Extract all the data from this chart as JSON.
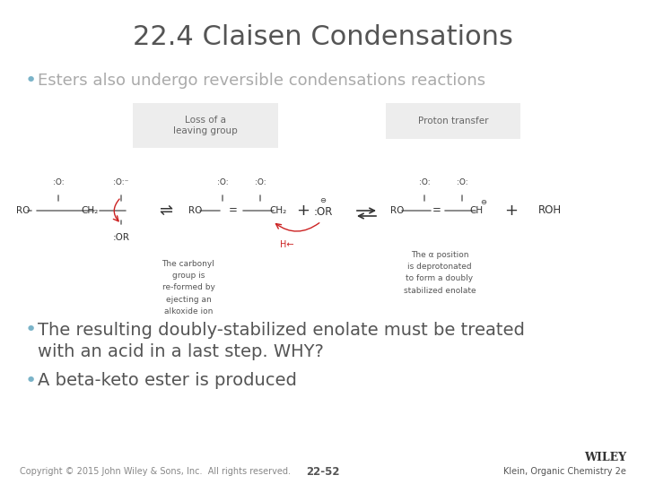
{
  "title": "22.4 Claisen Condensations",
  "title_color": "#555555",
  "title_fontsize": 22,
  "bullet_color": "#7ab3c8",
  "text_color": "#555555",
  "bullet1": "Esters also undergo reversible condensations reactions",
  "bullet2_line1": "The resulting doubly-stabilized enolate must be treated",
  "bullet2_line2": "with an acid in a last step. WHY?",
  "bullet3": "A beta-keto ester is produced",
  "bullet_fontsize": 14,
  "footer_left": "Copyright © 2015 John Wiley & Sons, Inc.  All rights reserved.",
  "footer_center": "22-52",
  "footer_right_line1": "WILEY",
  "footer_right_line2": "Klein, Organic Chemistry 2e",
  "footer_fontsize": 7,
  "background_color": "#ffffff",
  "label_box1_text": "Loss of a\nleaving group",
  "label_box2_text": "Proton transfer",
  "annot_color": "#555555",
  "annot1_lines": [
    "The carbonyl",
    "group is",
    "re-formed by",
    "ejecting an",
    "alkoxide ion"
  ],
  "annot2_lines": [
    "The α position",
    "is deprotonated",
    "to form a doubly",
    "stabilized enolate"
  ]
}
